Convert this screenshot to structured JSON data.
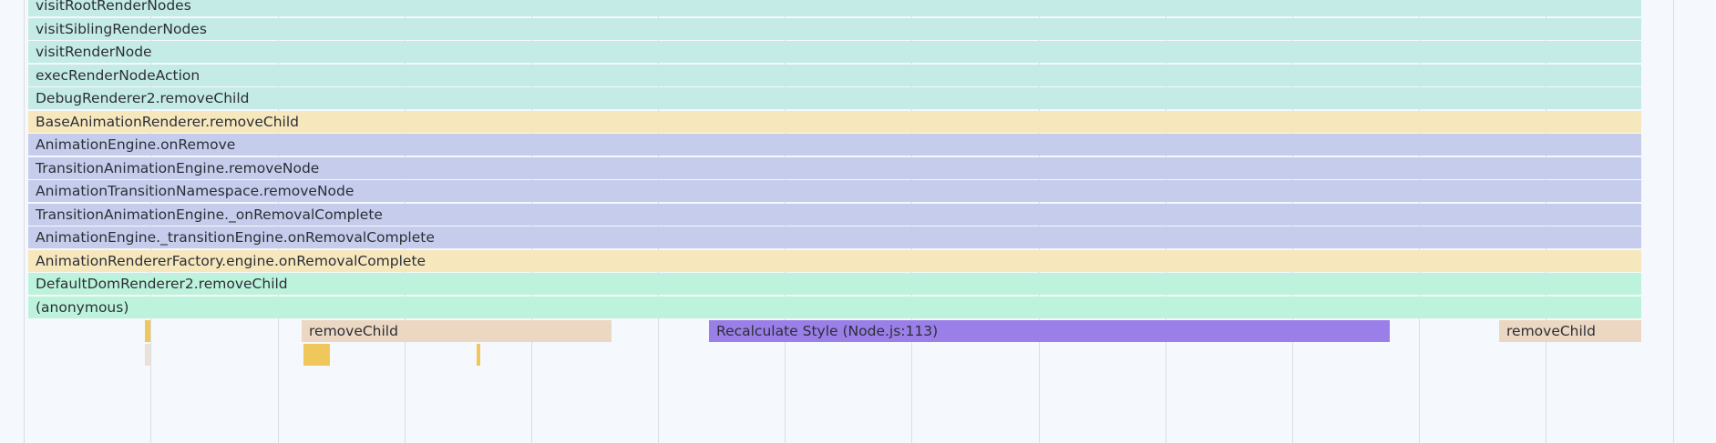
{
  "colors": {
    "teal": "#c4ebe6",
    "yellow": "#f7e7bd",
    "lavender": "#c6cdec",
    "mint": "#bdf3dc",
    "tan": "#ecd7c3",
    "purple": "#9b7fe8",
    "scripting": "#f0c75a",
    "faint": "#ece1d6"
  },
  "stack": [
    {
      "label": "visitRootRenderNodes",
      "color": "teal"
    },
    {
      "label": "visitSiblingRenderNodes",
      "color": "teal"
    },
    {
      "label": "visitRenderNode",
      "color": "teal"
    },
    {
      "label": "execRenderNodeAction",
      "color": "teal"
    },
    {
      "label": "DebugRenderer2.removeChild",
      "color": "teal"
    },
    {
      "label": "BaseAnimationRenderer.removeChild",
      "color": "yellow"
    },
    {
      "label": "AnimationEngine.onRemove",
      "color": "lavender"
    },
    {
      "label": "TransitionAnimationEngine.removeNode",
      "color": "lavender"
    },
    {
      "label": "AnimationTransitionNamespace.removeNode",
      "color": "lavender"
    },
    {
      "label": "TransitionAnimationEngine._onRemovalComplete",
      "color": "lavender"
    },
    {
      "label": "AnimationEngine._transitionEngine.onRemovalComplete",
      "color": "lavender"
    },
    {
      "label": "AnimationRendererFactory.engine.onRemovalComplete",
      "color": "yellow"
    },
    {
      "label": "DefaultDomRenderer2.removeChild",
      "color": "mint"
    },
    {
      "label": "(anonymous)",
      "color": "mint"
    }
  ],
  "child_frames": [
    {
      "label": "",
      "color": "scripting"
    },
    {
      "label": "removeChild",
      "color": "tan"
    },
    {
      "label": "Recalculate Style (Node.js:113)",
      "color": "purple"
    },
    {
      "label": "removeChild",
      "color": "tan"
    },
    {
      "label": "",
      "color": "faint"
    },
    {
      "label": "",
      "color": "scripting"
    },
    {
      "label": "",
      "color": "scripting"
    }
  ]
}
